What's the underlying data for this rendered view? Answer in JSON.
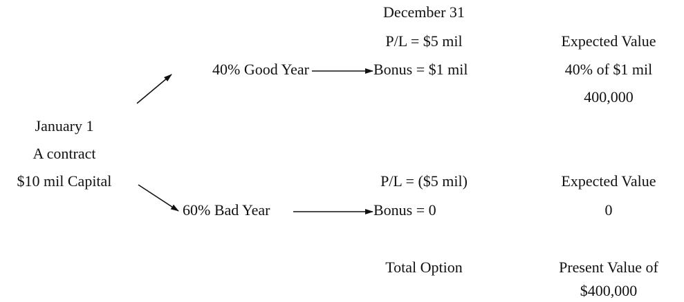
{
  "header": "December 31",
  "start": {
    "date": "January 1",
    "line1": "A contract",
    "line2": "$10 mil Capital"
  },
  "good": {
    "branch": "40% Good Year",
    "pl": "P/L = $5 mil",
    "bonus": "Bonus = $1 mil",
    "ev_title": "Expected Value",
    "ev_calc": "40% of $1 mil",
    "ev_value": "400,000"
  },
  "bad": {
    "branch": "60% Bad Year",
    "pl": "P/L = ($5 mil)",
    "bonus": "Bonus = 0",
    "ev_title": "Expected Value",
    "ev_value": "0"
  },
  "total": {
    "label": "Total Option",
    "value_line1": "Present Value of",
    "value_line2": "$400,000"
  }
}
